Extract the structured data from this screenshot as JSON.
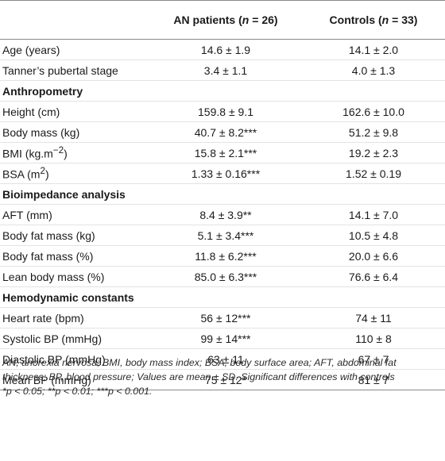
{
  "header": {
    "col1": "",
    "col2_group": "AN patients",
    "col2_n": "26",
    "col3_group": "Controls",
    "col3_n": "33",
    "n_symbol": "n",
    "eq": " = ",
    "open_paren": " (",
    "close_paren": ")"
  },
  "rows": [
    {
      "label": "Age (years)",
      "an": "14.6 ± 1.9",
      "ctrl": "14.1 ± 2.0"
    },
    {
      "label": "Tanner’s pubertal stage",
      "an": "3.4 ± 1.1",
      "ctrl": "4.0 ± 1.3"
    },
    {
      "section": "Anthropometry"
    },
    {
      "label": "Height (cm)",
      "an": "159.8 ± 9.1",
      "ctrl": "162.6 ± 10.0"
    },
    {
      "label": "Body mass (kg)",
      "an": "40.7 ± 8.2***",
      "ctrl": "51.2 ± 9.8"
    },
    {
      "label_main": "BMI (kg.m",
      "label_sup": "−2",
      "label_tail": ")",
      "an": "15.8 ± 2.1***",
      "ctrl": "19.2 ± 2.3"
    },
    {
      "label_main": "BSA (m",
      "label_sup": "2",
      "label_tail": ")",
      "an": "1.33 ± 0.16***",
      "ctrl": "1.52 ± 0.19"
    },
    {
      "section": "Bioimpedance analysis"
    },
    {
      "label": "AFT (mm)",
      "an": "8.4 ± 3.9**",
      "ctrl": "14.1 ± 7.0"
    },
    {
      "label": "Body fat mass (kg)",
      "an": "5.1 ± 3.4***",
      "ctrl": "10.5 ± 4.8"
    },
    {
      "label": "Body fat mass (%)",
      "an": "11.8 ± 6.2***",
      "ctrl": "20.0 ± 6.6"
    },
    {
      "label": "Lean body mass (%)",
      "an": "85.0 ± 6.3***",
      "ctrl": "76.6 ± 6.4"
    },
    {
      "section": "Hemodynamic constants"
    },
    {
      "label": "Heart rate (bpm)",
      "an": "56 ± 12***",
      "ctrl": "74 ± 11"
    },
    {
      "label": "Systolic BP (mmHg)",
      "an": "99 ± 14***",
      "ctrl": "110 ± 8"
    },
    {
      "label": "Diastolic BP (mmHg)",
      "an": "63 ± 11",
      "ctrl": "67 ± 7"
    },
    {
      "label": "Mean BP (mmHg)",
      "an": "75 ± 12*",
      "ctrl": "81 ± 7"
    }
  ],
  "footnote": {
    "line1": "AN, anorexia nervosa; BMI, body mass index; BSA, body surface area; AFT, abdominal fat",
    "line2": "thickness; BP, blood pressure; Values are mean ± SD. Significant differences with controls",
    "line3": "*p < 0.05; **p < 0.01; ***p < 0.001."
  }
}
